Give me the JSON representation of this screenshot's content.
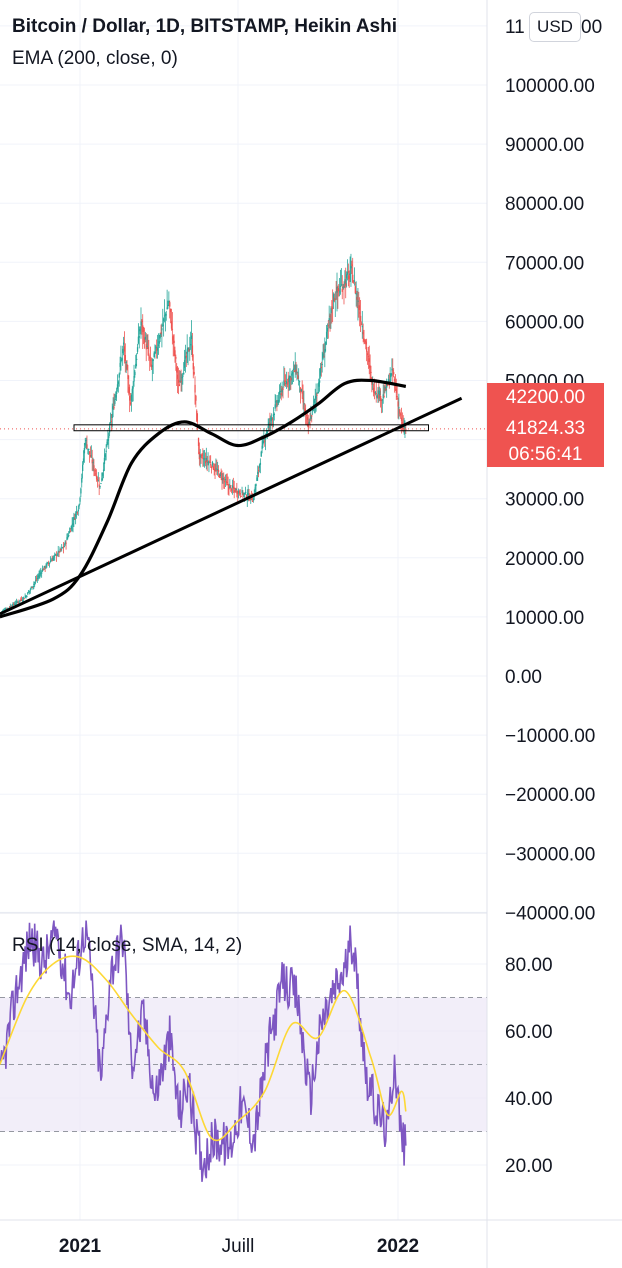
{
  "title": "Bitcoin / Dollar, 1D, BITSTAMP, Heikin Ashi",
  "ema_label": "EMA (200, close, 0)",
  "rsi_label": "RSI (14, close, SMA, 14, 2)",
  "currency_button": "USD",
  "price_badges": {
    "last": "42200.00",
    "current": "41824.33",
    "countdown": "06:56:41"
  },
  "colors": {
    "up": "#26a69a",
    "down": "#ef5350",
    "rsi": "#7e57c2",
    "rsi_ma": "#fdd835",
    "rsi_band": "#ede7f6",
    "grid": "#f0f3fa",
    "badge": "#ef5350"
  },
  "chart_data": [
    {
      "type": "candlestick",
      "title": "Bitcoin / Dollar, 1D, BITSTAMP, Heikin Ashi",
      "ylim": [
        -40000,
        110000
      ],
      "y_ticks": [
        "100000.00",
        "90000.00",
        "80000.00",
        "70000.00",
        "60000.00",
        "50000.00",
        "30000.00",
        "20000.00",
        "10000.00",
        "0.00",
        "−10000.00",
        "−20000.00",
        "−30000.00",
        "−40000.00"
      ],
      "top_tick_partial": "11",
      "top_tick_tail": "00",
      "x_ticks": [
        "2021",
        "Juill",
        "2022"
      ],
      "price_path": [
        [
          "2020-10-01",
          10500
        ],
        [
          "2020-11-01",
          13500
        ],
        [
          "2020-11-20",
          18000
        ],
        [
          "2020-12-15",
          22000
        ],
        [
          "2021-01-01",
          29000
        ],
        [
          "2021-01-08",
          40000
        ],
        [
          "2021-01-25",
          32000
        ],
        [
          "2021-02-10",
          46000
        ],
        [
          "2021-02-21",
          56000
        ],
        [
          "2021-03-01",
          46000
        ],
        [
          "2021-03-13",
          60000
        ],
        [
          "2021-03-25",
          52000
        ],
        [
          "2021-04-14",
          63500
        ],
        [
          "2021-04-25",
          49000
        ],
        [
          "2021-05-10",
          57000
        ],
        [
          "2021-05-19",
          37000
        ],
        [
          "2021-06-01",
          36000
        ],
        [
          "2021-06-22",
          32000
        ],
        [
          "2021-07-20",
          30000
        ],
        [
          "2021-08-01",
          40000
        ],
        [
          "2021-08-23",
          49000
        ],
        [
          "2021-09-07",
          52000
        ],
        [
          "2021-09-21",
          42000
        ],
        [
          "2021-10-01",
          48000
        ],
        [
          "2021-10-20",
          64000
        ],
        [
          "2021-11-10",
          68500
        ],
        [
          "2021-11-25",
          57000
        ],
        [
          "2021-12-04",
          49000
        ],
        [
          "2021-12-15",
          47000
        ],
        [
          "2021-12-27",
          51500
        ],
        [
          "2022-01-07",
          42000
        ],
        [
          "2022-01-10",
          41824
        ]
      ],
      "ema_200": [
        [
          "2020-10-01",
          10000
        ],
        [
          "2020-12-01",
          13000
        ],
        [
          "2021-01-01",
          17000
        ],
        [
          "2021-02-01",
          26000
        ],
        [
          "2021-03-01",
          36000
        ],
        [
          "2021-04-01",
          41000
        ],
        [
          "2021-05-01",
          43000
        ],
        [
          "2021-06-01",
          41000
        ],
        [
          "2021-07-01",
          39000
        ],
        [
          "2021-08-01",
          40500
        ],
        [
          "2021-09-01",
          43000
        ],
        [
          "2021-10-01",
          46000
        ],
        [
          "2021-11-01",
          49500
        ],
        [
          "2021-12-01",
          50000
        ],
        [
          "2022-01-10",
          49000
        ]
      ],
      "horizontal_zone": {
        "low": 41500,
        "high": 42500,
        "from": "2021-01-01",
        "to": "2022-02-05"
      },
      "trend_line": {
        "from": [
          "2020-10-01",
          10500
        ],
        "to": [
          "2022-03-15",
          47000
        ]
      },
      "last_price": 42200,
      "current_price": 41824.33,
      "countdown": "06:56:41"
    },
    {
      "type": "line",
      "title": "RSI (14, close, SMA, 14, 2)",
      "ylim": [
        14,
        93
      ],
      "y_ticks": [
        "80.00",
        "60.00",
        "40.00",
        "20.00"
      ],
      "bands": {
        "upper": 70,
        "middle": 50,
        "lower": 30
      },
      "series": [
        {
          "name": "RSI",
          "values": [
            [
              "2020-10-01",
              45
            ],
            [
              "2020-10-20",
              72
            ],
            [
              "2020-11-05",
              88
            ],
            [
              "2020-11-20",
              80
            ],
            [
              "2020-12-05",
              90
            ],
            [
              "2020-12-20",
              70
            ],
            [
              "2021-01-08",
              92
            ],
            [
              "2021-01-25",
              45
            ],
            [
              "2021-02-05",
              78
            ],
            [
              "2021-02-20",
              88
            ],
            [
              "2021-03-01",
              50
            ],
            [
              "2021-03-15",
              65
            ],
            [
              "2021-03-28",
              40
            ],
            [
              "2021-04-14",
              58
            ],
            [
              "2021-04-25",
              35
            ],
            [
              "2021-05-05",
              45
            ],
            [
              "2021-05-20",
              20
            ],
            [
              "2021-06-05",
              28
            ],
            [
              "2021-06-22",
              25
            ],
            [
              "2021-07-05",
              38
            ],
            [
              "2021-07-20",
              28
            ],
            [
              "2021-08-05",
              55
            ],
            [
              "2021-08-22",
              75
            ],
            [
              "2021-09-07",
              70
            ],
            [
              "2021-09-22",
              40
            ],
            [
              "2021-10-05",
              62
            ],
            [
              "2021-10-20",
              72
            ],
            [
              "2021-11-01",
              78
            ],
            [
              "2021-11-10",
              88
            ],
            [
              "2021-11-25",
              48
            ],
            [
              "2021-12-05",
              38
            ],
            [
              "2021-12-20",
              30
            ],
            [
              "2021-12-28",
              52
            ],
            [
              "2022-01-05",
              28
            ],
            [
              "2022-01-10",
              25
            ]
          ]
        },
        {
          "name": "RSI-based MA",
          "values": [
            [
              "2020-10-01",
              50
            ],
            [
              "2020-11-01",
              70
            ],
            [
              "2020-12-01",
              80
            ],
            [
              "2021-01-01",
              82
            ],
            [
              "2021-02-01",
              75
            ],
            [
              "2021-03-01",
              65
            ],
            [
              "2021-04-01",
              55
            ],
            [
              "2021-05-01",
              48
            ],
            [
              "2021-06-01",
              28
            ],
            [
              "2021-07-01",
              33
            ],
            [
              "2021-08-01",
              42
            ],
            [
              "2021-09-01",
              62
            ],
            [
              "2021-10-01",
              58
            ],
            [
              "2021-11-01",
              72
            ],
            [
              "2021-12-01",
              52
            ],
            [
              "2021-12-20",
              35
            ],
            [
              "2022-01-05",
              42
            ],
            [
              "2022-01-10",
              36
            ]
          ]
        }
      ]
    }
  ]
}
